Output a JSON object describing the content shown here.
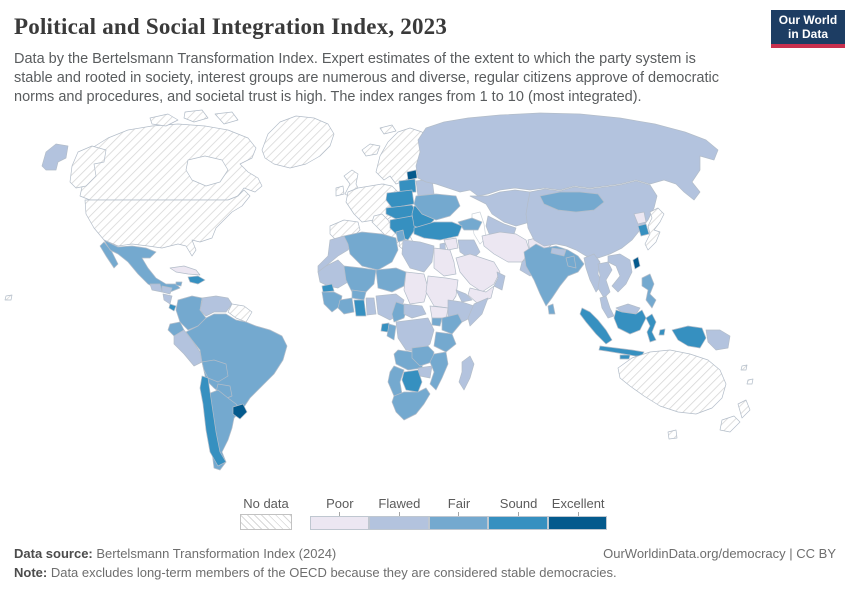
{
  "header": {
    "title": "Political and Social Integration Index, 2023",
    "subtitle": "Data by the Bertelsmann Transformation Index. Expert estimates of the extent to which the party system is stable and rooted in society, interest groups are numerous and diverse, regular citizens approve of democratic norms and procedures, and societal trust is high. The index ranges from 1 to 10 (most integrated).",
    "logo_line1": "Our World",
    "logo_line2": "in Data",
    "logo_bg": "#1d3d63",
    "logo_accent": "#c9304e"
  },
  "legend": {
    "nodata_label": "No data",
    "bins": [
      {
        "label": "Poor",
        "color": "#ece7f2"
      },
      {
        "label": "Flawed",
        "color": "#b3c3de"
      },
      {
        "label": "Fair",
        "color": "#74a9cf"
      },
      {
        "label": "Sound",
        "color": "#3690c0"
      },
      {
        "label": "Excellent",
        "color": "#045a8d"
      }
    ]
  },
  "footer": {
    "source_label": "Data source:",
    "source_text": " Bertelsmann Transformation Index (2024)",
    "right_text": "OurWorldinData.org/democracy | CC BY",
    "note_label": "Note:",
    "note_text": " Data excludes long-term members of the OECD because they are considered stable democracies."
  },
  "map": {
    "colors": {
      "poor": "#ece7f2",
      "flawed": "#b3c3de",
      "fair": "#74a9cf",
      "sound": "#3690c0",
      "excellent": "#045a8d"
    },
    "regions": {
      "canada": "nodata",
      "arctic1": "nodata",
      "arctic2": "nodata",
      "arctic3": "nodata",
      "greenland": "nodata",
      "alaska": "nodata",
      "usa": "nodata",
      "hawaii": "nodata",
      "iceland": "nodata",
      "svalbard": "nodata",
      "uk": "nodata",
      "ireland": "nodata",
      "scandinavia": "nodata",
      "denmark": "nodata",
      "west-europe": "nodata",
      "iberia": "nodata",
      "italy": "nodata",
      "greece": "nodata",
      "guianas": "nodata",
      "japan": "nodata",
      "australia": "nodata",
      "tasmania": "nodata",
      "nz-north": "nodata",
      "nz-south": "nodata",
      "pacific1": "nodata",
      "pacific2": "nodata",
      "chukotka": "flawed",
      "guatemala": "flawed",
      "honduras": "flawed",
      "nicaragua": "flawed",
      "venezuela": "flawed",
      "peru": "flawed",
      "belarus": "flawed",
      "russia": "flawed",
      "kazakhstan": "flawed",
      "uzbek-turkmen": "flawed",
      "morocco": "flawed",
      "w-sahara-mauritania": "flawed",
      "libya": "flawed",
      "togo-benin": "flawed",
      "nigeria": "flawed",
      "car": "flawed",
      "drc": "flawed",
      "zimbabwe": "flawed",
      "madagascar": "flawed",
      "eritrea": "flawed",
      "ethiopia": "flawed",
      "somalia": "flawed",
      "levant": "flawed",
      "iraq": "flawed",
      "oman": "flawed",
      "pakistan": "flawed",
      "nepal": "flawed",
      "myanmar": "flawed",
      "thailand": "flawed",
      "indochina": "flawed",
      "malay-peninsula": "flawed",
      "borneo-malaysia": "flawed",
      "png": "flawed",
      "china": "flawed",
      "cuba": "poor",
      "chad": "poor",
      "sudan": "poor",
      "south-sudan": "poor",
      "egypt": "poor",
      "syria": "poor",
      "saudi": "poor",
      "yemen": "poor",
      "iran": "poor",
      "afghanistan": "poor",
      "kyrgyz-tajik": "poor",
      "north-korea": "poor",
      "mexico": "fair",
      "panama": "fair",
      "jamaica": "fair",
      "colombia": "fair",
      "ecuador": "fair",
      "brazil": "fair",
      "bolivia": "fair",
      "paraguay": "fair",
      "argentina": "fair",
      "algeria": "fair",
      "tunisia": "fair",
      "mali": "fair",
      "niger": "fair",
      "guinea-group": "fair",
      "cote-divoire": "fair",
      "burkina": "fair",
      "cameroon": "fair",
      "congo": "fair",
      "uganda": "fair",
      "kenya": "fair",
      "tanzania": "fair",
      "angola": "fair",
      "zambia": "fair",
      "mozambique": "fair",
      "namibia": "fair",
      "south-africa": "fair",
      "caucasus": "fair",
      "ukraine": "fair",
      "india": "fair",
      "bangladesh": "fair",
      "sri-lanka": "fair",
      "mongolia": "fair",
      "philippines": "fair",
      "costa-rica": "sound",
      "hispaniola": "sound",
      "trinidad": "sound",
      "chile": "sound",
      "latvia-lithuania": "sound",
      "poland": "sound",
      "czechia-hungary": "sound",
      "balkans": "sound",
      "romania-bulgaria": "sound",
      "turkey": "sound",
      "senegal": "sound",
      "ghana": "sound",
      "gabon": "sound",
      "botswana": "sound",
      "south-korea": "sound",
      "borneo-indonesia": "sound",
      "sumatra": "sound",
      "java": "sound",
      "sulawesi": "sound",
      "lesser-sunda1": "sound",
      "lesser-sunda2": "sound",
      "maluku": "sound",
      "west-papua": "sound",
      "estonia": "excellent",
      "uruguay": "excellent",
      "taiwan": "excellent"
    }
  }
}
